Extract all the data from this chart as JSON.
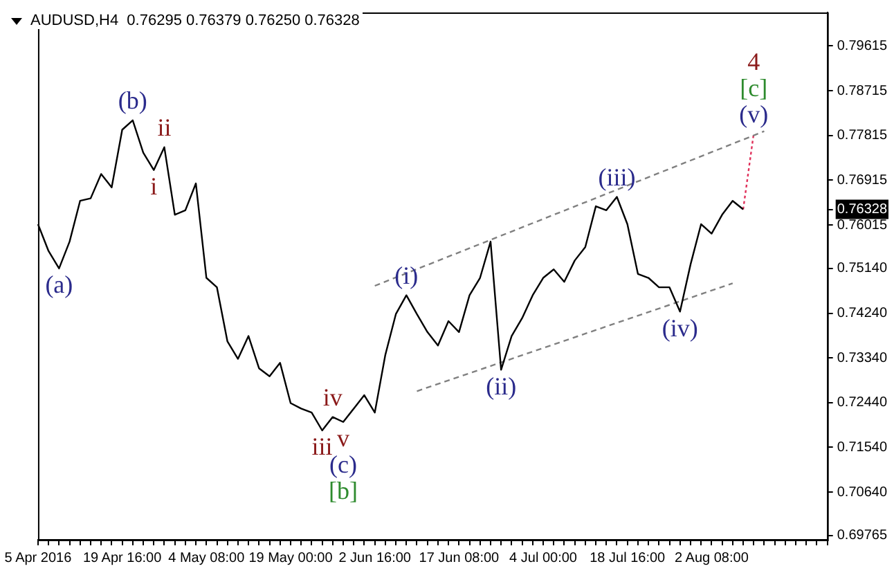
{
  "chart_data": {
    "type": "line",
    "title": "AUDUSD,H4  0.76295 0.76379 0.76250 0.76328",
    "categories": [
      "5 Apr 2016",
      null,
      null,
      null,
      null,
      null,
      null,
      null,
      "19 Apr 16:00",
      null,
      null,
      null,
      null,
      null,
      null,
      null,
      "4 May 08:00",
      null,
      null,
      null,
      null,
      null,
      null,
      null,
      "19 May 00:00",
      null,
      null,
      null,
      null,
      null,
      null,
      null,
      "2 Jun 16:00",
      null,
      null,
      null,
      null,
      null,
      null,
      null,
      "17 Jun 08:00",
      null,
      null,
      null,
      null,
      null,
      null,
      null,
      "4 Jul 00:00",
      null,
      null,
      null,
      null,
      null,
      null,
      null,
      "18 Jul 16:00",
      null,
      null,
      null,
      null,
      null,
      null,
      null,
      "2 Aug 08:00",
      null,
      null,
      null,
      null,
      null,
      null,
      null,
      null,
      null,
      null,
      null
    ],
    "series": [
      {
        "color": "#000000",
        "line_style": "solid",
        "values": [
          0.7603,
          0.7549,
          0.7514,
          0.7568,
          0.765,
          0.7655,
          0.7704,
          0.7677,
          0.7793,
          0.7812,
          0.7747,
          0.7712,
          0.7758,
          0.7622,
          0.7631,
          0.7685,
          0.7495,
          0.7476,
          0.7367,
          0.7332,
          0.7378,
          0.7313,
          0.7297,
          0.7324,
          0.7243,
          0.7232,
          0.7224,
          0.7188,
          0.7215,
          0.7205,
          0.7232,
          0.7259,
          0.7224,
          0.734,
          0.7422,
          0.746,
          0.7422,
          0.7386,
          0.7359,
          0.7408,
          0.7386,
          0.746,
          0.7495,
          0.7568,
          0.731,
          0.7378,
          0.7414,
          0.746,
          0.7495,
          0.7512,
          0.7487,
          0.753,
          0.7557,
          0.7639,
          0.7631,
          0.7658,
          0.7603,
          0.7503,
          0.7495,
          0.7476,
          0.7476,
          0.7427,
          0.7522,
          0.7603,
          0.7584,
          0.7622,
          0.765,
          0.76328,
          null,
          null,
          null,
          null,
          null,
          null,
          null,
          null
        ]
      },
      {
        "color": "#808080",
        "line_style": "dashed",
        "values": [
          null,
          null,
          null,
          null,
          null,
          null,
          null,
          null,
          null,
          null,
          null,
          null,
          null,
          null,
          null,
          null,
          null,
          null,
          null,
          null,
          null,
          null,
          null,
          null,
          null,
          null,
          null,
          null,
          null,
          null,
          null,
          null,
          0.7479,
          null,
          null,
          null,
          null,
          null,
          null,
          null,
          null,
          null,
          null,
          null,
          null,
          null,
          null,
          null,
          null,
          null,
          null,
          null,
          null,
          null,
          null,
          null,
          null,
          null,
          null,
          null,
          null,
          null,
          null,
          null,
          null,
          null,
          null,
          null,
          null,
          0.779,
          null,
          null,
          null,
          null,
          null,
          null
        ]
      },
      {
        "color": "#808080",
        "line_style": "dashed",
        "values": [
          null,
          null,
          null,
          null,
          null,
          null,
          null,
          null,
          null,
          null,
          null,
          null,
          null,
          null,
          null,
          null,
          null,
          null,
          null,
          null,
          null,
          null,
          null,
          null,
          null,
          null,
          null,
          null,
          null,
          null,
          null,
          null,
          null,
          null,
          null,
          null,
          0.7267,
          null,
          null,
          null,
          null,
          null,
          null,
          null,
          null,
          null,
          null,
          null,
          null,
          null,
          null,
          null,
          null,
          null,
          null,
          null,
          null,
          null,
          null,
          null,
          null,
          null,
          null,
          null,
          null,
          null,
          0.7484,
          null,
          null,
          null,
          null,
          null,
          null,
          null,
          null,
          null
        ]
      },
      {
        "color": "#e0305a",
        "line_style": "dotted",
        "values": [
          null,
          null,
          null,
          null,
          null,
          null,
          null,
          null,
          null,
          null,
          null,
          null,
          null,
          null,
          null,
          null,
          null,
          null,
          null,
          null,
          null,
          null,
          null,
          null,
          null,
          null,
          null,
          null,
          null,
          null,
          null,
          null,
          null,
          null,
          null,
          null,
          null,
          null,
          null,
          null,
          null,
          null,
          null,
          null,
          null,
          null,
          null,
          null,
          null,
          null,
          null,
          null,
          null,
          null,
          null,
          null,
          null,
          null,
          null,
          null,
          null,
          null,
          null,
          null,
          null,
          null,
          null,
          0.76328,
          0.7785,
          null,
          null,
          null,
          null,
          null,
          null,
          null
        ]
      }
    ],
    "ylim": [
      0.6968,
      0.8029
    ],
    "yticks": [
      0.79615,
      0.78715,
      0.77815,
      0.76915,
      0.76328,
      0.76015,
      {
        "value": 0.7514,
        "label": "0.75140"
      },
      {
        "value": 0.7424,
        "label": "0.74240"
      },
      {
        "value": 0.7334,
        "label": "0.73340"
      },
      {
        "value": 0.7244,
        "label": "0.72440"
      },
      {
        "value": 0.7154,
        "label": "0.71540"
      },
      {
        "value": 0.7064,
        "label": "0.70640"
      },
      0.69765
    ],
    "grid": false,
    "legend": false,
    "marker": "none",
    "annotations": [
      {
        "text": "(a)",
        "y": 0.7514
      },
      {
        "text": "(b)",
        "y": 0.7812
      },
      {
        "text": "ii",
        "y": 0.7758
      },
      {
        "text": "i",
        "y": 0.7712
      },
      {
        "text": "iii",
        "y": 0.7188
      },
      {
        "text": "iv",
        "y": 0.7215
      },
      {
        "text": "v",
        "y": 0.7205
      },
      {
        "text": "(c)",
        "y": 0.7205
      },
      {
        "text": "[b]",
        "y": 0.7205
      },
      {
        "text": "(i)",
        "y": 0.746
      },
      {
        "text": "(ii)",
        "y": 0.731
      },
      {
        "text": "(iii)",
        "y": 0.7658
      },
      {
        "text": "(iv)",
        "y": 0.7427
      },
      {
        "text": "(v)",
        "y": 0.7785
      },
      {
        "text": "[c]",
        "y": 0.7785
      },
      {
        "text": "4",
        "y": 0.7785
      }
    ]
  }
}
